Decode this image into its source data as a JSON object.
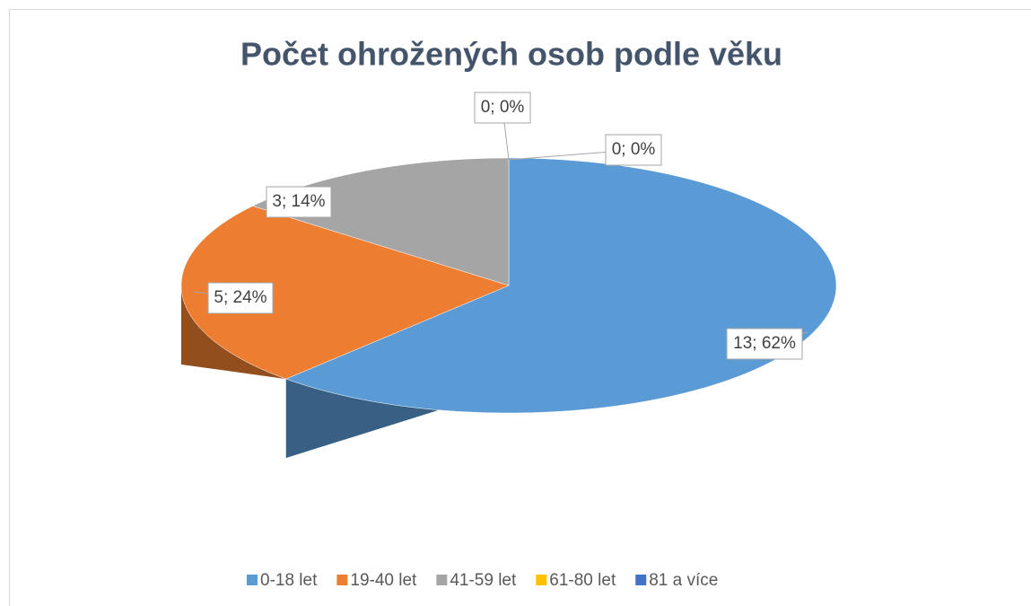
{
  "chart_data": {
    "type": "pie3d",
    "title": "Počet ohrožených osob podle věku",
    "categories": [
      "0-18 let",
      "19-40 let",
      "41-59 let",
      "61-80 let",
      "81 a více"
    ],
    "values": [
      13,
      5,
      3,
      0,
      0
    ],
    "value_labels": [
      "13; 62%",
      "5; 24%",
      "3; 14%",
      "0; 0%",
      "0; 0%"
    ],
    "colors": [
      "#5b9bd5",
      "#ed7d31",
      "#a5a5a5",
      "#ffc000",
      "#4472c4"
    ],
    "legend": "bottom"
  }
}
